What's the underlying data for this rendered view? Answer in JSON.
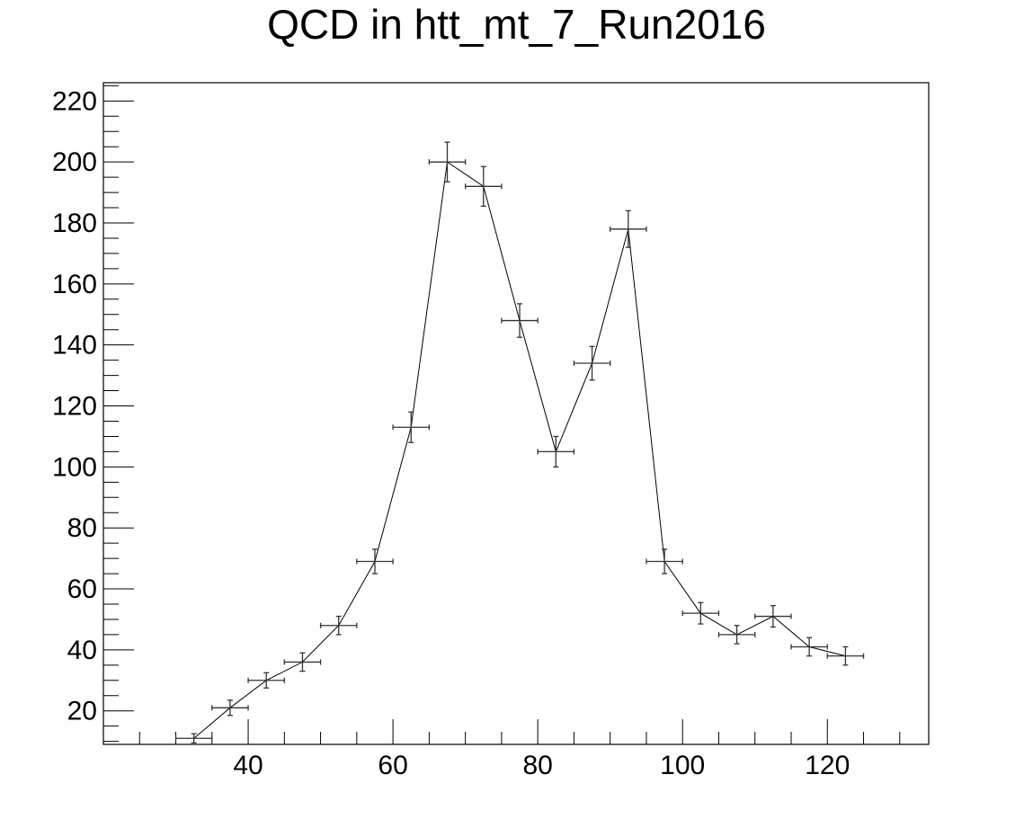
{
  "chart_data": {
    "type": "scatter",
    "title": "QCD in htt_mt_7_Run2016",
    "xlabel": "",
    "ylabel": "",
    "xlim": [
      20,
      134
    ],
    "ylim": [
      9,
      226
    ],
    "x_ticks": [
      40,
      60,
      80,
      100,
      120
    ],
    "y_ticks": [
      20,
      40,
      60,
      80,
      100,
      120,
      140,
      160,
      180,
      200,
      220
    ],
    "grid": false,
    "series": [
      {
        "style": "points with x and y error bars joined by a line",
        "x": [
          32.5,
          37.5,
          42.5,
          47.5,
          52.5,
          57.5,
          62.5,
          67.5,
          72.5,
          77.5,
          82.5,
          87.5,
          92.5,
          97.5,
          102.5,
          107.5,
          112.5,
          117.5,
          122.5
        ],
        "y": [
          11,
          21,
          30,
          36,
          48,
          69,
          113,
          200,
          192,
          148,
          105,
          134,
          178,
          69,
          52,
          45,
          51,
          41,
          38
        ],
        "x_err": [
          2.5,
          2.5,
          2.5,
          2.5,
          2.5,
          2.5,
          2.5,
          2.5,
          2.5,
          2.5,
          2.5,
          2.5,
          2.5,
          2.5,
          2.5,
          2.5,
          2.5,
          2.5,
          2.5
        ],
        "y_err": [
          1.5,
          2.5,
          2.5,
          3,
          3,
          4,
          5,
          6.5,
          6.5,
          5.5,
          5,
          5.5,
          6,
          4,
          3.5,
          3,
          3.5,
          3,
          3
        ]
      }
    ]
  }
}
